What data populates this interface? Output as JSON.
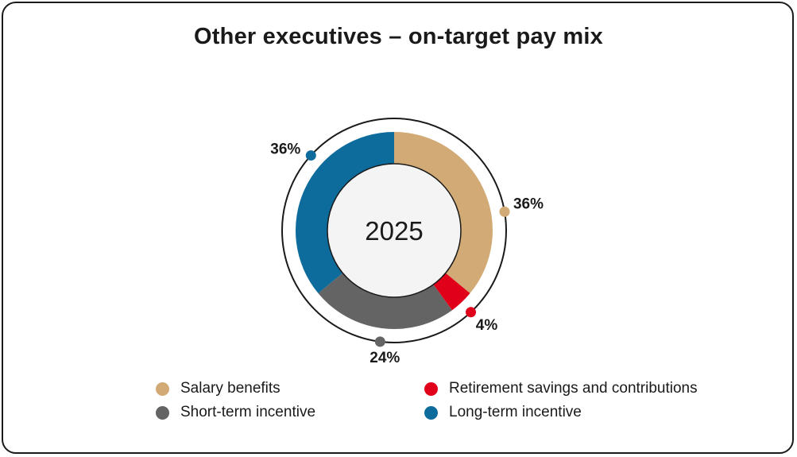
{
  "chart_data": {
    "type": "pie",
    "variant": "donut",
    "title": "Other executives – on-target pay mix",
    "center_label": "2025",
    "slices": [
      {
        "name": "Salary benefits",
        "value": 36,
        "label": "36%",
        "color": "#d2aa75"
      },
      {
        "name": "Retirement savings and contributions",
        "value": 4,
        "label": "4%",
        "color": "#e0001a"
      },
      {
        "name": "Short-term incentive",
        "value": 24,
        "label": "24%",
        "color": "#646464"
      },
      {
        "name": "Long-term incentive",
        "value": 36,
        "label": "36%",
        "color": "#0e6c9c"
      }
    ],
    "legend": [
      {
        "name": "Salary benefits",
        "color": "#d2aa75"
      },
      {
        "name": "Retirement savings and contributions",
        "color": "#e0001a"
      },
      {
        "name": "Short-term incentive",
        "color": "#646464"
      },
      {
        "name": "Long-term incentive",
        "color": "#0e6c9c"
      }
    ]
  }
}
